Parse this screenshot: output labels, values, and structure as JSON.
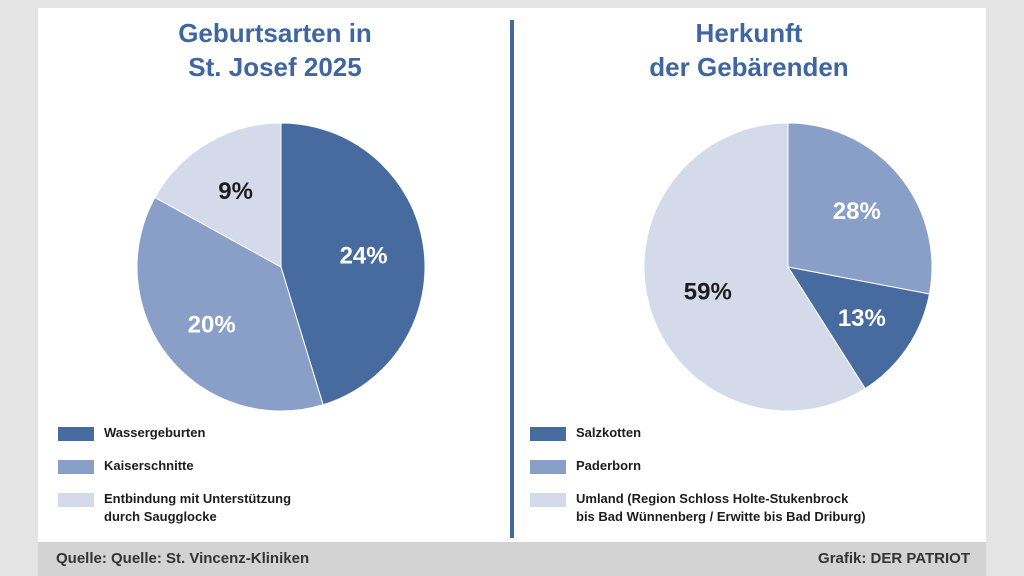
{
  "chart_data": [
    {
      "type": "pie",
      "title_lines": [
        "Geburtsarten in",
        "St. Josef 2025"
      ],
      "slices": [
        {
          "label": "Wassergeburten",
          "display": "24%",
          "value": 24,
          "color": "#476b9e"
        },
        {
          "label": "Kaiserschnitte",
          "display": "20%",
          "value": 20,
          "color": "#8a9fc7"
        },
        {
          "label": "Entbindung mit Unterstützung\ndurch Saugglocke",
          "display": "9%",
          "value": 9,
          "color": "#d5daea"
        }
      ]
    },
    {
      "type": "pie",
      "title_lines": [
        "Herkunft",
        "der Gebärenden"
      ],
      "slices": [
        {
          "label": "Paderborn",
          "display": "28%",
          "value": 28,
          "color": "#8a9fc7"
        },
        {
          "label": "Salzkotten",
          "display": "13%",
          "value": 13,
          "color": "#476b9e"
        },
        {
          "label": "Umland (Region Schloss Holte-Stukenbrock\nbis Bad Wünnenberg / Erwitte bis Bad Driburg)",
          "display": "59%",
          "value": 59,
          "color": "#d5daea"
        }
      ],
      "legend_order": [
        "Salzkotten",
        "Paderborn",
        "Umland (Region Schloss Holte-Stukenbrock\nbis Bad Wünnenberg / Erwitte bis Bad Driburg)"
      ]
    }
  ],
  "footer": {
    "source": "Quelle: Quelle: St. Vincenz-Kliniken",
    "credit": "Grafik: DER PATRIOT"
  }
}
